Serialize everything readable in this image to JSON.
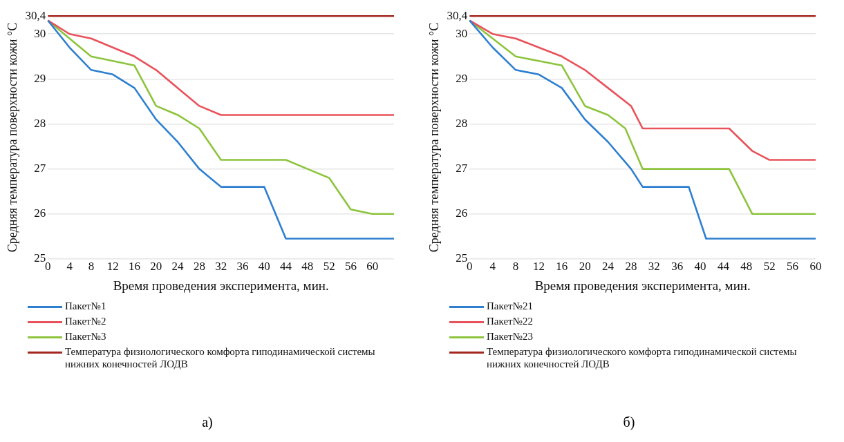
{
  "chart_data": [
    {
      "type": "line",
      "xlabel": "Время проведения эксперимента, мин.",
      "ylabel": "Средняя температура поверхности кожи °C",
      "xlim": [
        0,
        64
      ],
      "xticks": [
        0,
        4,
        8,
        12,
        16,
        20,
        24,
        28,
        32,
        36,
        40,
        44,
        48,
        52,
        56,
        60
      ],
      "ylim": [
        25,
        30.4
      ],
      "yticks": [
        25,
        26,
        27,
        28,
        29,
        30,
        {
          "value": 30.4,
          "label": "30,4"
        }
      ],
      "grid": "y",
      "legend": "bottom",
      "marker": "none",
      "line_style": "solid",
      "annotations": [
        "а)"
      ],
      "series": [
        {
          "name": "Пакет№1",
          "color": "#2e7fd0",
          "x": [
            0,
            4,
            8,
            12,
            16,
            20,
            24,
            28,
            32,
            40,
            44,
            64
          ],
          "values": [
            30.3,
            29.7,
            29.2,
            29.1,
            28.8,
            28.1,
            27.6,
            27.0,
            26.6,
            26.6,
            25.45,
            25.45
          ]
        },
        {
          "name": "Пакет№2",
          "color": "#e8525a",
          "x": [
            0,
            4,
            8,
            12,
            16,
            20,
            24,
            28,
            32,
            64
          ],
          "values": [
            30.3,
            30.0,
            29.9,
            29.7,
            29.5,
            29.2,
            28.8,
            28.4,
            28.2,
            28.2
          ]
        },
        {
          "name": "Пакет№3",
          "color": "#8cc43c",
          "x": [
            0,
            4,
            8,
            12,
            16,
            20,
            24,
            28,
            32,
            44,
            48,
            52,
            56,
            60,
            64
          ],
          "values": [
            30.3,
            29.9,
            29.5,
            29.4,
            29.3,
            28.4,
            28.2,
            27.9,
            27.2,
            27.2,
            27.0,
            26.8,
            26.1,
            26.0,
            26.0
          ]
        },
        {
          "name": "Температура физиологического комфорта гиподинамической системы нижних конечностей ЛОДВ",
          "color": "#a3261f",
          "x": [
            0,
            64
          ],
          "values": [
            30.4,
            30.4
          ]
        }
      ]
    },
    {
      "type": "line",
      "xlabel": "Время проведения эксперимента, мин.",
      "ylabel": "Средняя температура поверхности кожи °C",
      "xlim": [
        0,
        60
      ],
      "xticks": [
        0,
        4,
        8,
        12,
        16,
        20,
        24,
        28,
        32,
        36,
        40,
        44,
        48,
        52,
        56,
        60
      ],
      "ylim": [
        25,
        30.4
      ],
      "yticks": [
        25,
        26,
        27,
        28,
        29,
        30,
        {
          "value": 30.4,
          "label": "30,4"
        }
      ],
      "grid": "y",
      "legend": "bottom",
      "marker": "none",
      "line_style": "solid",
      "annotations": [
        "б)"
      ],
      "series": [
        {
          "name": "Пакет№21",
          "color": "#2e7fd0",
          "x": [
            0,
            4,
            8,
            12,
            16,
            20,
            24,
            28,
            30,
            38,
            41,
            60
          ],
          "values": [
            30.3,
            29.7,
            29.2,
            29.1,
            28.8,
            28.1,
            27.6,
            27.0,
            26.6,
            26.6,
            25.45,
            25.45
          ]
        },
        {
          "name": "Пакет№22",
          "color": "#e8525a",
          "x": [
            0,
            4,
            8,
            12,
            16,
            20,
            24,
            28,
            30,
            45,
            49,
            52,
            60
          ],
          "values": [
            30.3,
            30.0,
            29.9,
            29.7,
            29.5,
            29.2,
            28.8,
            28.4,
            27.9,
            27.9,
            27.4,
            27.2,
            27.2
          ]
        },
        {
          "name": "Пакет№23",
          "color": "#8cc43c",
          "x": [
            0,
            8,
            12,
            16,
            20,
            24,
            27,
            30,
            45,
            49,
            60
          ],
          "values": [
            30.3,
            29.5,
            29.4,
            29.3,
            28.4,
            28.2,
            27.9,
            27.0,
            27.0,
            26.0,
            26.0
          ]
        },
        {
          "name": "Температура физиологического комфорта гиподинамической системы нижних конечностей ЛОДВ",
          "color": "#a3261f",
          "x": [
            0,
            60
          ],
          "values": [
            30.4,
            30.4
          ]
        }
      ]
    }
  ]
}
